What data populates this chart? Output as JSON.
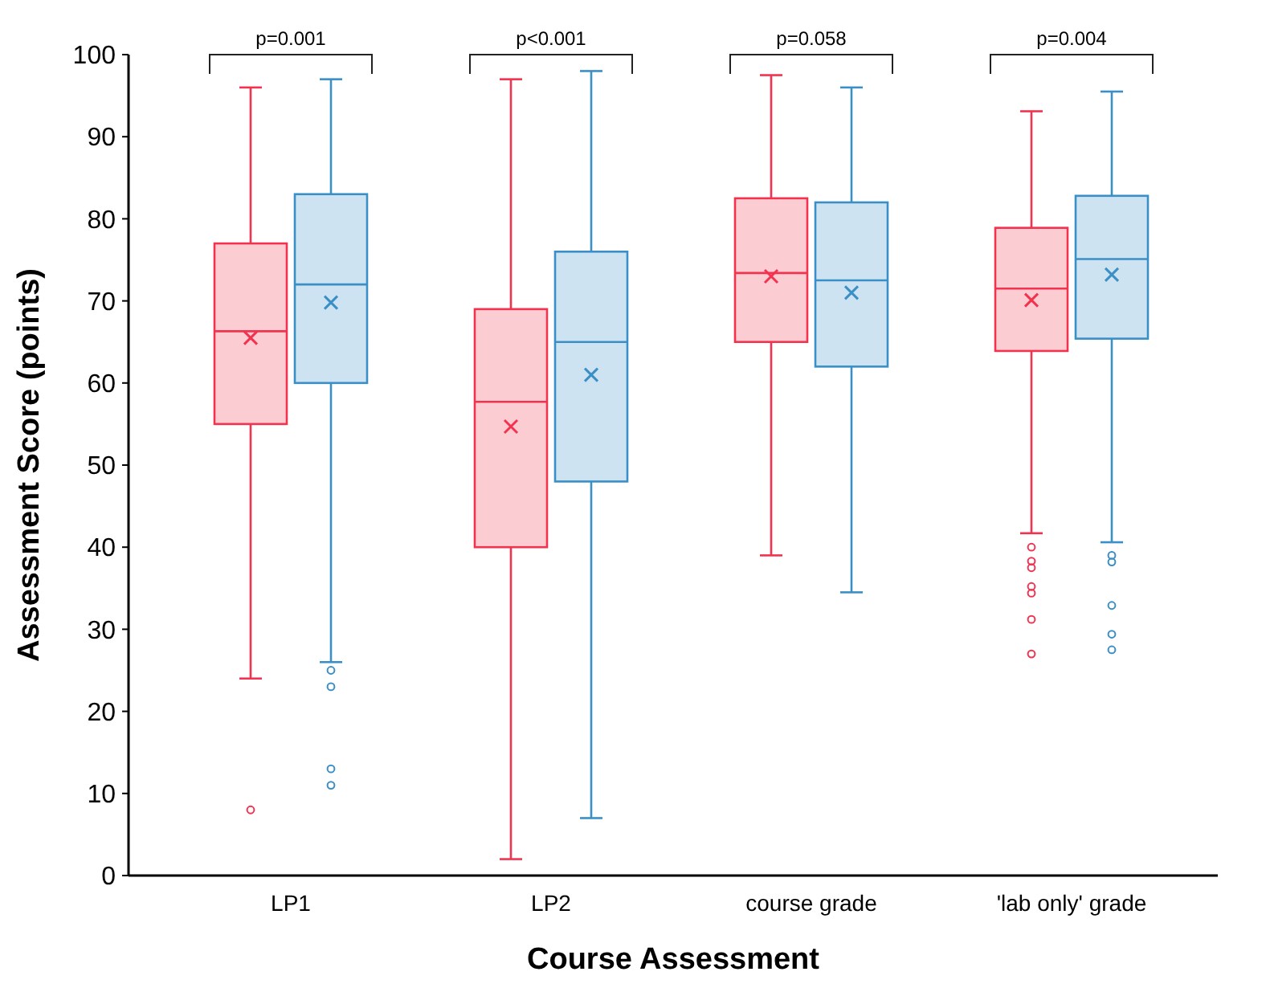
{
  "chart_data": {
    "type": "box",
    "xlabel": "Course Assessment",
    "ylabel": "Assessment Score (points)",
    "categories": [
      "LP1",
      "LP2",
      "course grade",
      "'lab only' grade"
    ],
    "ylim": [
      0,
      100
    ],
    "yticks": [
      0,
      10,
      20,
      30,
      40,
      50,
      60,
      70,
      80,
      90,
      100
    ],
    "annotations": [
      "p=0.001",
      "p<0.001",
      "p=0.058",
      "p=0.004"
    ],
    "series": [
      {
        "color": "#f2334f",
        "boxes": [
          {
            "low": 24,
            "q1": 55,
            "median": 66.3,
            "q3": 77,
            "high": 96,
            "mean": 65.5,
            "outliers": [
              8
            ]
          },
          {
            "low": 2,
            "q1": 40,
            "median": 57.7,
            "q3": 69,
            "high": 97,
            "mean": 54.7
          },
          {
            "low": 39,
            "q1": 65,
            "median": 73.4,
            "q3": 82.5,
            "high": 97.5,
            "mean": 73
          },
          {
            "low": 41.7,
            "q1": 63.9,
            "median": 71.5,
            "q3": 78.9,
            "high": 93.1,
            "mean": 70.1,
            "outliers": [
              40,
              38.3,
              37.5,
              35.2,
              34.4,
              31.2,
              27
            ]
          }
        ]
      },
      {
        "color": "#3a8fc6",
        "boxes": [
          {
            "low": 26,
            "q1": 60,
            "median": 72,
            "q3": 83,
            "high": 97,
            "mean": 69.8,
            "outliers": [
              25,
              23,
              13,
              11
            ]
          },
          {
            "low": 7,
            "q1": 48,
            "median": 65,
            "q3": 76,
            "high": 98,
            "mean": 61
          },
          {
            "low": 34.5,
            "q1": 62,
            "median": 72.5,
            "q3": 82,
            "high": 96,
            "mean": 71
          },
          {
            "low": 40.6,
            "q1": 65.4,
            "median": 75.1,
            "q3": 82.8,
            "high": 95.5,
            "mean": 73.2,
            "outliers": [
              39,
              38.2,
              32.9,
              29.4,
              27.5
            ]
          }
        ]
      }
    ]
  }
}
